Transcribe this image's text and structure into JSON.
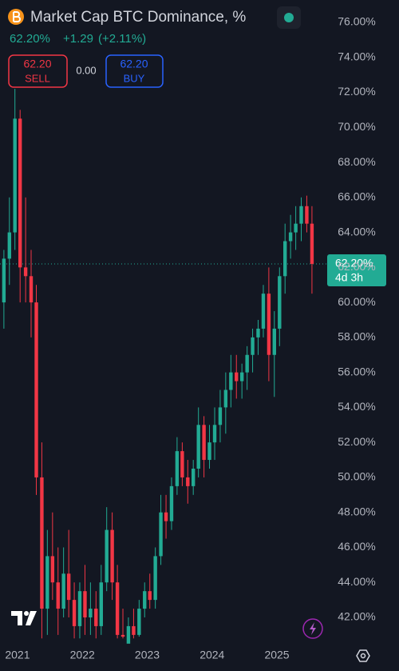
{
  "header": {
    "last": "62.20%",
    "change": "+1.29",
    "change_pct": "(+2.11%)",
    "sell_price": "62.20",
    "sell_label": "SELL",
    "spread": "0.00",
    "buy_price": "62.20",
    "buy_label": "BUY",
    "countdown": "4d 3h"
  },
  "chart_data": {
    "type": "candlestick",
    "title": "Market Cap BTC Dominance, %",
    "up_color": "#22ab94",
    "down_color": "#f23645",
    "grid": false,
    "price_line": {
      "value": 62.2,
      "label": "62.20%"
    },
    "xlim": [
      2020.73,
      2025.75
    ],
    "xticks": [
      2021,
      2022,
      2023,
      2024,
      2025
    ],
    "ylim": [
      40.72,
      77.28
    ],
    "yticks": [
      {
        "value": 42,
        "label": "42.00%"
      },
      {
        "value": 44,
        "label": "44.00%"
      },
      {
        "value": 46,
        "label": "46.00%"
      },
      {
        "value": 48,
        "label": "48.00%"
      },
      {
        "value": 50,
        "label": "50.00%"
      },
      {
        "value": 52,
        "label": "52.00%"
      },
      {
        "value": 54,
        "label": "54.00%"
      },
      {
        "value": 56,
        "label": "56.00%"
      },
      {
        "value": 58,
        "label": "58.00%"
      },
      {
        "value": 60,
        "label": "60.00%"
      },
      {
        "value": 62,
        "label": "62.00%"
      },
      {
        "value": 64,
        "label": "64.00%"
      },
      {
        "value": 66,
        "label": "66.00%"
      },
      {
        "value": 68,
        "label": "68.00%"
      },
      {
        "value": 70,
        "label": "70.00%"
      },
      {
        "value": 72,
        "label": "72.00%"
      },
      {
        "value": 74,
        "label": "74.00%"
      },
      {
        "value": 76,
        "label": "76.00%"
      }
    ],
    "x": [
      2020.79,
      2020.875,
      2020.96,
      2021.04,
      2021.125,
      2021.21,
      2021.29,
      2021.375,
      2021.46,
      2021.54,
      2021.625,
      2021.71,
      2021.79,
      2021.875,
      2021.96,
      2022.04,
      2022.125,
      2022.21,
      2022.29,
      2022.375,
      2022.46,
      2022.54,
      2022.625,
      2022.71,
      2022.79,
      2022.875,
      2022.96,
      2023.04,
      2023.125,
      2023.21,
      2023.29,
      2023.375,
      2023.46,
      2023.54,
      2023.625,
      2023.71,
      2023.79,
      2023.875,
      2023.96,
      2024.04,
      2024.125,
      2024.21,
      2024.29,
      2024.375,
      2024.46,
      2024.54,
      2024.625,
      2024.71,
      2024.79,
      2024.875,
      2024.96,
      2025.04,
      2025.125,
      2025.21,
      2025.29,
      2025.375,
      2025.46,
      2025.54
    ],
    "open": [
      60,
      62.5,
      64,
      70.5,
      62,
      61.5,
      60,
      50,
      42.5,
      45.5,
      44,
      42.5,
      44.5,
      43,
      41.5,
      43.5,
      42,
      42.5,
      41.5,
      44,
      47,
      44,
      41,
      40.5,
      41.5,
      41,
      42.5,
      43.5,
      43,
      45.5,
      48,
      47.5,
      49.5,
      51.5,
      50,
      49.5,
      50.5,
      53,
      51,
      52,
      53,
      54,
      55,
      56,
      55.5,
      56,
      57,
      58,
      58.5,
      60.5,
      57,
      58.5,
      61.5,
      63.5,
      64,
      64.5,
      65.5,
      64.5
    ],
    "high": [
      63,
      66,
      72.2,
      71,
      66,
      63,
      61,
      52,
      47,
      48,
      46,
      46,
      47,
      44,
      44,
      45,
      44,
      43.5,
      45,
      48.3,
      48,
      45,
      42.5,
      42,
      42.5,
      43,
      44,
      44.5,
      46,
      49,
      49,
      50,
      52.3,
      52,
      51,
      51,
      54,
      53.5,
      53,
      54,
      55,
      56,
      57,
      57,
      56.5,
      57.5,
      58.5,
      59,
      61,
      62,
      59.5,
      62,
      64.5,
      65,
      65.5,
      66,
      66.1,
      65.5
    ],
    "low": [
      58.5,
      61,
      63,
      60,
      60,
      58,
      49,
      40.8,
      41,
      43,
      41,
      42,
      42,
      40.8,
      40.8,
      41,
      41,
      40.8,
      41,
      43.5,
      43,
      40.8,
      40.8,
      40.8,
      40.8,
      40.9,
      42,
      42.5,
      42.5,
      45,
      46.5,
      47,
      49,
      49.5,
      48.5,
      49,
      50,
      50,
      50.5,
      51,
      52,
      52.5,
      54,
      54.5,
      54.5,
      55,
      56,
      57,
      58,
      55.5,
      54.6,
      57.5,
      60.5,
      62.5,
      63,
      63.5,
      64,
      60.5
    ],
    "close": [
      62.5,
      64,
      70.5,
      62,
      61.5,
      60,
      50,
      42.5,
      45.5,
      44,
      42.5,
      44.5,
      43,
      41.5,
      43.5,
      42,
      42.5,
      41.5,
      44,
      47,
      44,
      41,
      40.9,
      41.5,
      41,
      42.5,
      43.5,
      43,
      45.5,
      48,
      47.5,
      49.5,
      51.5,
      50,
      49.5,
      50.5,
      53,
      51,
      52,
      53,
      54,
      55,
      56,
      55.5,
      56,
      57,
      58,
      58.5,
      60.5,
      57,
      58.5,
      61.5,
      63.5,
      64,
      64.5,
      65.5,
      64.5,
      62.2
    ]
  }
}
